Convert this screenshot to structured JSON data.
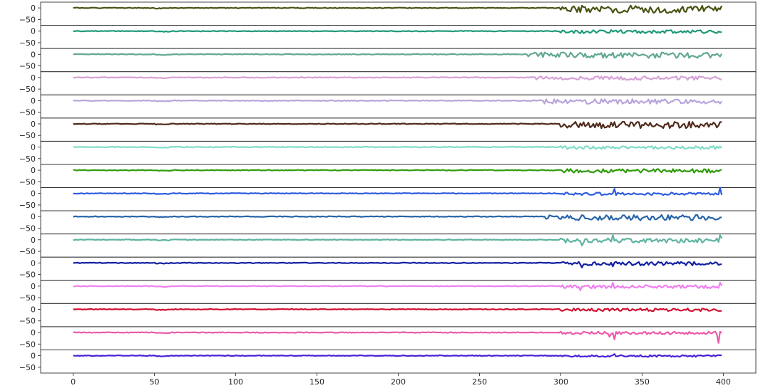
{
  "chart_data": {
    "type": "line",
    "title": "",
    "xlabel": "",
    "ylabel": "",
    "subplots": 16,
    "xlim": [
      -20,
      420
    ],
    "ylim": [
      -75,
      25
    ],
    "x_ticks": [
      0,
      50,
      100,
      150,
      200,
      250,
      300,
      350,
      400
    ],
    "x_tick_labels": [
      "0",
      "50",
      "100",
      "150",
      "200",
      "250",
      "300",
      "350",
      "400"
    ],
    "y_ticks": [
      0,
      -50
    ],
    "y_tick_labels": [
      "0",
      "−50"
    ],
    "grid": false,
    "legend": "none",
    "n_points": 400,
    "series": [
      {
        "color": "#4a5212",
        "quiet_start": 300,
        "amp": 16,
        "seed": 1,
        "spikes": []
      },
      {
        "color": "#1d9a78",
        "quiet_start": 300,
        "amp": 7,
        "seed": 2,
        "spikes": []
      },
      {
        "color": "#62a893",
        "quiet_start": 280,
        "amp": 12,
        "seed": 3,
        "spikes": []
      },
      {
        "color": "#d6a0d6",
        "quiet_start": 285,
        "amp": 8,
        "seed": 4,
        "spikes": []
      },
      {
        "color": "#b8a4dc",
        "quiet_start": 290,
        "amp": 10,
        "seed": 5,
        "spikes": []
      },
      {
        "color": "#4f2a1a",
        "quiet_start": 300,
        "amp": 14,
        "seed": 6,
        "spikes": []
      },
      {
        "color": "#80dcc7",
        "quiet_start": 300,
        "amp": 7,
        "seed": 7,
        "spikes": []
      },
      {
        "color": "#2f9c0a",
        "quiet_start": 300,
        "amp": 8,
        "seed": 8,
        "spikes": []
      },
      {
        "color": "#2e5be0",
        "quiet_start": 300,
        "amp": 6,
        "seed": 9,
        "spikes": [
          [
            333,
            20
          ],
          [
            398,
            25
          ]
        ]
      },
      {
        "color": "#2664a8",
        "quiet_start": 290,
        "amp": 12,
        "seed": 10,
        "spikes": []
      },
      {
        "color": "#5fb3a0",
        "quiet_start": 300,
        "amp": 10,
        "seed": 11,
        "spikes": [
          [
            313,
            -25
          ],
          [
            332,
            20
          ],
          [
            398,
            20
          ]
        ]
      },
      {
        "color": "#101ea0",
        "quiet_start": 300,
        "amp": 8,
        "seed": 12,
        "spikes": [
          [
            313,
            -20
          ],
          [
            332,
            -15
          ]
        ]
      },
      {
        "color": "#f07ef0",
        "quiet_start": 300,
        "amp": 7,
        "seed": 13,
        "spikes": [
          [
            312,
            -18
          ],
          [
            332,
            15
          ],
          [
            398,
            15
          ]
        ]
      },
      {
        "color": "#d01030",
        "quiet_start": 300,
        "amp": 6,
        "seed": 14,
        "spikes": []
      },
      {
        "color": "#ec5aa8",
        "quiet_start": 300,
        "amp": 6,
        "seed": 15,
        "spikes": [
          [
            330,
            -18
          ],
          [
            333,
            -30
          ],
          [
            397,
            -45
          ]
        ]
      },
      {
        "color": "#4a20d8",
        "quiet_start": 300,
        "amp": 4,
        "seed": 16,
        "spikes": [
          [
            333,
            7
          ]
        ]
      }
    ]
  }
}
